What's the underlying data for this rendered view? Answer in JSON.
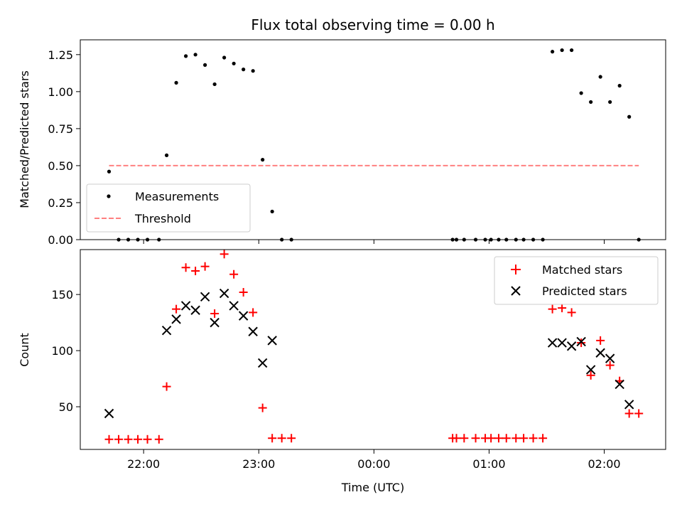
{
  "figure": {
    "title": "Flux total observing time = 0.00 h",
    "xlabel": "Time (UTC)"
  },
  "colors": {
    "measurement": "#000000",
    "threshold": "#ff8080",
    "matched": "#ff0000",
    "predicted": "#000000"
  },
  "chart_data": [
    {
      "type": "scatter",
      "ylabel": "Matched/Predicted stars",
      "xlim": [
        "21:27",
        "02:32"
      ],
      "ylim": [
        0,
        1.35
      ],
      "x_ticks": [
        "22:00",
        "23:00",
        "00:00",
        "01:00",
        "02:00"
      ],
      "y_ticks": [
        "0.00",
        "0.25",
        "0.50",
        "0.75",
        "1.00",
        "1.25"
      ],
      "legend": {
        "position": "lower-left",
        "entries": [
          "Measurements",
          "Threshold"
        ]
      },
      "series": [
        {
          "name": "Measurements",
          "marker": "dot",
          "points": [
            [
              "21:42",
              0.46
            ],
            [
              "21:47",
              0.0
            ],
            [
              "21:52",
              0.0
            ],
            [
              "21:57",
              0.0
            ],
            [
              "22:02",
              0.0
            ],
            [
              "22:08",
              0.0
            ],
            [
              "22:12",
              0.57
            ],
            [
              "22:17",
              1.06
            ],
            [
              "22:22",
              1.24
            ],
            [
              "22:27",
              1.25
            ],
            [
              "22:32",
              1.18
            ],
            [
              "22:37",
              1.05
            ],
            [
              "22:42",
              1.23
            ],
            [
              "22:47",
              1.19
            ],
            [
              "22:52",
              1.15
            ],
            [
              "22:57",
              1.14
            ],
            [
              "23:02",
              0.54
            ],
            [
              "23:07",
              0.19
            ],
            [
              "23:12",
              0.0
            ],
            [
              "23:17",
              0.0
            ],
            [
              "00:41",
              0.0
            ],
            [
              "00:43",
              0.0
            ],
            [
              "00:47",
              0.0
            ],
            [
              "00:53",
              0.0
            ],
            [
              "00:58",
              0.0
            ],
            [
              "01:01",
              0.0
            ],
            [
              "01:05",
              0.0
            ],
            [
              "01:09",
              0.0
            ],
            [
              "01:14",
              0.0
            ],
            [
              "01:18",
              0.0
            ],
            [
              "01:23",
              0.0
            ],
            [
              "01:28",
              0.0
            ],
            [
              "01:33",
              1.27
            ],
            [
              "01:38",
              1.28
            ],
            [
              "01:43",
              1.28
            ],
            [
              "01:48",
              0.99
            ],
            [
              "01:53",
              0.93
            ],
            [
              "01:58",
              1.1
            ],
            [
              "02:03",
              0.93
            ],
            [
              "02:08",
              1.04
            ],
            [
              "02:13",
              0.83
            ],
            [
              "02:18",
              0.0
            ]
          ]
        },
        {
          "name": "Threshold",
          "type": "line",
          "style": "dashed",
          "points": [
            [
              "21:42",
              0.5
            ],
            [
              "02:18",
              0.5
            ]
          ]
        }
      ]
    },
    {
      "type": "scatter",
      "ylabel": "Count",
      "xlim": [
        "21:27",
        "02:32"
      ],
      "ylim": [
        12,
        190
      ],
      "x_ticks": [
        "22:00",
        "23:00",
        "00:00",
        "01:00",
        "02:00"
      ],
      "y_ticks": [
        "50",
        "100",
        "150"
      ],
      "legend": {
        "position": "top-right",
        "entries": [
          "Matched stars",
          "Predicted stars"
        ]
      },
      "series": [
        {
          "name": "Matched stars",
          "marker": "plus",
          "points": [
            [
              "21:42",
              21
            ],
            [
              "21:47",
              21
            ],
            [
              "21:52",
              21
            ],
            [
              "21:57",
              21
            ],
            [
              "22:02",
              21
            ],
            [
              "22:08",
              21
            ],
            [
              "22:12",
              68
            ],
            [
              "22:17",
              137
            ],
            [
              "22:22",
              174
            ],
            [
              "22:27",
              171
            ],
            [
              "22:32",
              175
            ],
            [
              "22:37",
              133
            ],
            [
              "22:42",
              186
            ],
            [
              "22:47",
              168
            ],
            [
              "22:52",
              152
            ],
            [
              "22:57",
              134
            ],
            [
              "23:02",
              49
            ],
            [
              "23:07",
              22
            ],
            [
              "23:12",
              22
            ],
            [
              "23:17",
              22
            ],
            [
              "00:41",
              22
            ],
            [
              "00:43",
              22
            ],
            [
              "00:47",
              22
            ],
            [
              "00:53",
              22
            ],
            [
              "00:58",
              22
            ],
            [
              "01:01",
              22
            ],
            [
              "01:05",
              22
            ],
            [
              "01:09",
              22
            ],
            [
              "01:14",
              22
            ],
            [
              "01:18",
              22
            ],
            [
              "01:23",
              22
            ],
            [
              "01:28",
              22
            ],
            [
              "01:33",
              137
            ],
            [
              "01:38",
              138
            ],
            [
              "01:43",
              134
            ],
            [
              "01:48",
              107
            ],
            [
              "01:53",
              78
            ],
            [
              "01:58",
              109
            ],
            [
              "02:03",
              87
            ],
            [
              "02:08",
              73
            ],
            [
              "02:13",
              44
            ],
            [
              "02:18",
              44
            ]
          ]
        },
        {
          "name": "Predicted stars",
          "marker": "x",
          "points": [
            [
              "21:42",
              44
            ],
            [
              "22:12",
              118
            ],
            [
              "22:17",
              128
            ],
            [
              "22:22",
              140
            ],
            [
              "22:27",
              136
            ],
            [
              "22:32",
              148
            ],
            [
              "22:37",
              125
            ],
            [
              "22:42",
              151
            ],
            [
              "22:47",
              140
            ],
            [
              "22:52",
              131
            ],
            [
              "22:57",
              117
            ],
            [
              "23:02",
              89
            ],
            [
              "23:07",
              109
            ],
            [
              "01:33",
              107
            ],
            [
              "01:38",
              107
            ],
            [
              "01:43",
              104
            ],
            [
              "01:48",
              108
            ],
            [
              "01:53",
              83
            ],
            [
              "01:58",
              98
            ],
            [
              "02:03",
              93
            ],
            [
              "02:08",
              70
            ],
            [
              "02:13",
              52
            ]
          ]
        }
      ]
    }
  ]
}
